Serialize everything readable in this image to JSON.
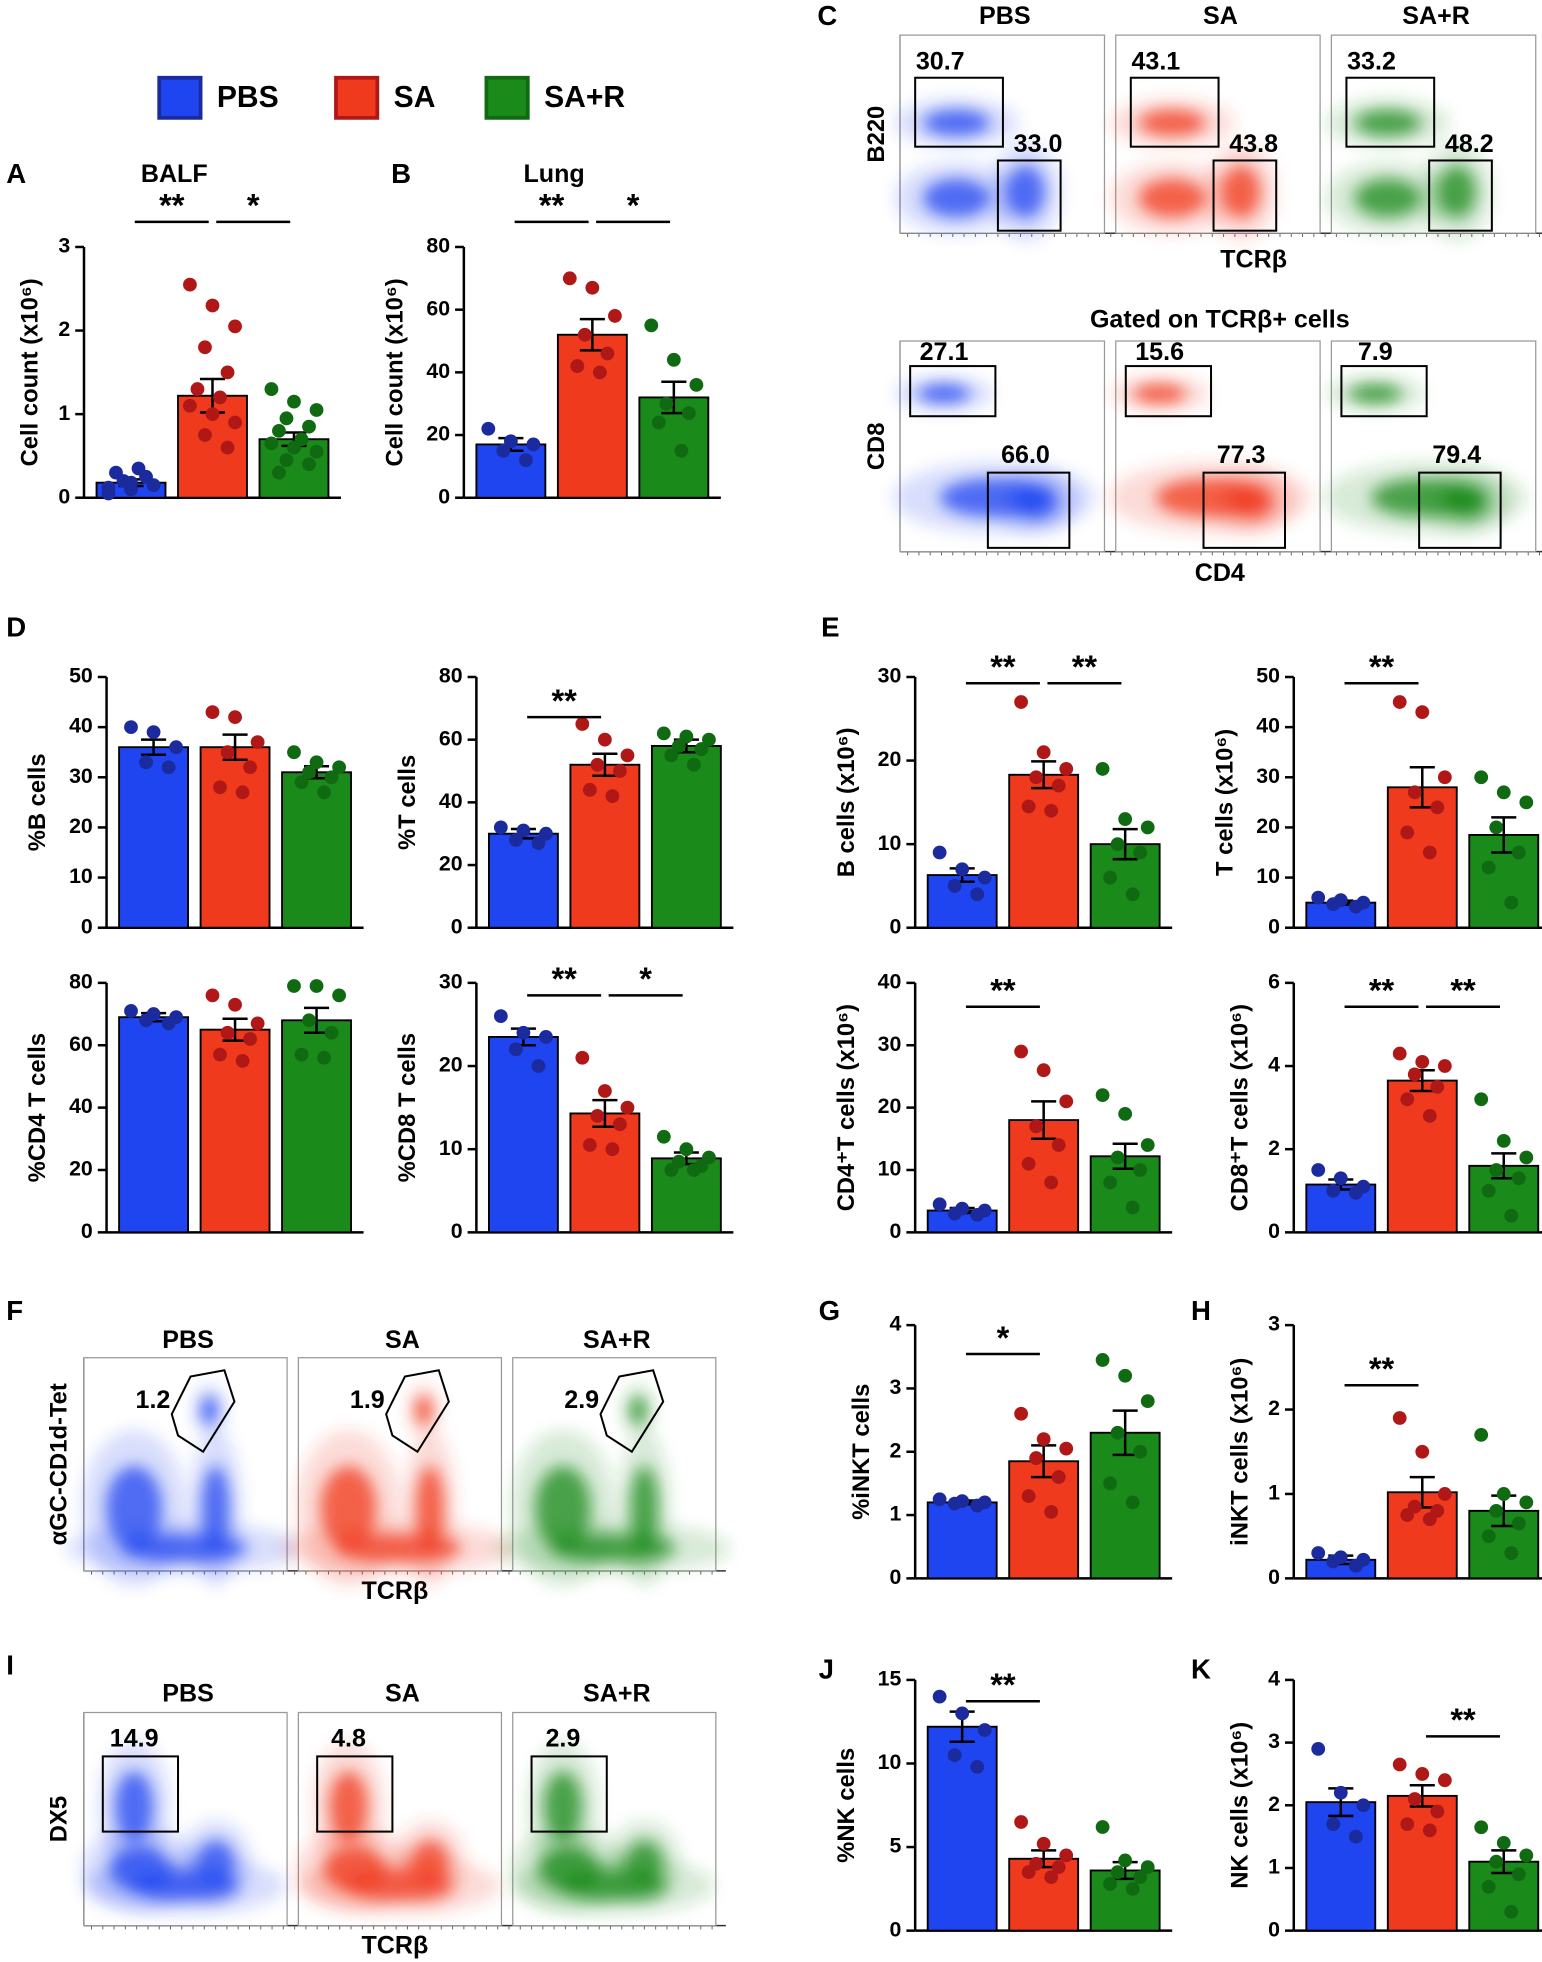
{
  "legend": [
    {
      "name": "PBS",
      "color": "#1f45f0",
      "point_color": "#1b2a9c"
    },
    {
      "name": "SA",
      "color": "#f03a1e",
      "point_color": "#b01818"
    },
    {
      "name": "SA+R",
      "color": "#1a8a1a",
      "point_color": "#0f6a12"
    }
  ],
  "chart_data": [
    {
      "type": "bar",
      "panel": "A",
      "title": "BALF",
      "ylabel": "Cell count (x10⁶)",
      "ylim": [
        0,
        3
      ],
      "yticks": [
        0,
        1,
        2,
        3
      ],
      "values": [
        0.18,
        1.22,
        0.7
      ],
      "errors": [
        0.04,
        0.2,
        0.08
      ],
      "points": [
        [
          0.05,
          0.1,
          0.15,
          0.2,
          0.25,
          0.3,
          0.35,
          0.12,
          0.18
        ],
        [
          2.55,
          2.3,
          2.05,
          1.8,
          1.5,
          1.3,
          1.2,
          1.1,
          1.0,
          0.9,
          0.75,
          0.6
        ],
        [
          1.3,
          1.15,
          1.05,
          0.95,
          0.85,
          0.8,
          0.7,
          0.65,
          0.6,
          0.55,
          0.45,
          0.4,
          0.3
        ]
      ],
      "significance": [
        {
          "groups": [
            0,
            1
          ],
          "label": "**"
        },
        {
          "groups": [
            1,
            2
          ],
          "label": "*"
        }
      ]
    },
    {
      "type": "bar",
      "panel": "B",
      "title": "Lung",
      "ylabel": "Cell count (x10⁶)",
      "ylim": [
        0,
        80
      ],
      "yticks": [
        0,
        20,
        40,
        60,
        80
      ],
      "values": [
        17,
        52,
        32
      ],
      "errors": [
        2,
        5,
        5
      ],
      "points": [
        [
          22,
          18,
          17,
          15,
          12
        ],
        [
          70,
          67,
          58,
          52,
          46,
          42,
          40
        ],
        [
          55,
          44,
          36,
          30,
          27,
          24,
          15
        ]
      ],
      "significance": [
        {
          "groups": [
            0,
            1
          ],
          "label": "**"
        },
        {
          "groups": [
            1,
            2
          ],
          "label": "*"
        }
      ]
    },
    {
      "type": "bar",
      "panel": "D",
      "ylabel": "%B cells",
      "ylim": [
        0,
        50
      ],
      "yticks": [
        0,
        10,
        20,
        30,
        40,
        50
      ],
      "values": [
        36,
        36,
        31
      ],
      "errors": [
        1.5,
        2.5,
        1.2
      ],
      "points": [
        [
          40,
          39,
          36,
          33,
          32
        ],
        [
          43,
          42,
          37,
          35,
          32,
          28,
          27
        ],
        [
          35,
          33,
          32,
          31,
          30,
          29,
          27
        ]
      ],
      "significance": []
    },
    {
      "type": "bar",
      "ylabel": "%T cells",
      "ylim": [
        0,
        80
      ],
      "yticks": [
        0,
        20,
        40,
        60,
        80
      ],
      "values": [
        30,
        52,
        58
      ],
      "errors": [
        1.5,
        3.5,
        2
      ],
      "points": [
        [
          32,
          31,
          30,
          28,
          27
        ],
        [
          65,
          60,
          55,
          52,
          50,
          44,
          42
        ],
        [
          62,
          61,
          60,
          58,
          57,
          55,
          52
        ]
      ],
      "significance": [
        {
          "groups": [
            0,
            1
          ],
          "label": "**"
        }
      ]
    },
    {
      "type": "bar",
      "ylabel": "%CD4 T cells",
      "ylim": [
        0,
        80
      ],
      "yticks": [
        0,
        20,
        40,
        60,
        80
      ],
      "values": [
        69,
        65,
        68
      ],
      "errors": [
        1.3,
        3.5,
        4
      ],
      "points": [
        [
          71,
          70,
          69,
          68,
          67
        ],
        [
          76,
          73,
          67,
          64,
          62,
          57,
          55
        ],
        [
          79,
          79,
          76,
          68,
          64,
          57,
          56
        ]
      ],
      "significance": []
    },
    {
      "type": "bar",
      "ylabel": "%CD8 T cells",
      "ylim": [
        0,
        30
      ],
      "yticks": [
        0,
        10,
        20,
        30
      ],
      "values": [
        23.5,
        14.3,
        8.9
      ],
      "errors": [
        1,
        1.6,
        0.7
      ],
      "points": [
        [
          26,
          24,
          23.5,
          22,
          20
        ],
        [
          21,
          17,
          15,
          14,
          13,
          10.5,
          10
        ],
        [
          11.5,
          10,
          9,
          8.5,
          8,
          7.5,
          7.5
        ]
      ],
      "significance": [
        {
          "groups": [
            0,
            1
          ],
          "label": "**"
        },
        {
          "groups": [
            1,
            2
          ],
          "label": "*"
        }
      ]
    },
    {
      "type": "bar",
      "panel": "E",
      "ylabel": "B cells (x10⁶)",
      "ylim": [
        0,
        30
      ],
      "yticks": [
        0,
        10,
        20,
        30
      ],
      "values": [
        6.3,
        18.3,
        10
      ],
      "errors": [
        0.8,
        1.6,
        1.8
      ],
      "points": [
        [
          9,
          7,
          6,
          5,
          4
        ],
        [
          27,
          21,
          19,
          18,
          17,
          14.5,
          14
        ],
        [
          19,
          13,
          12,
          10,
          9,
          6,
          4
        ]
      ],
      "significance": [
        {
          "groups": [
            0,
            1
          ],
          "label": "**"
        },
        {
          "groups": [
            1,
            2
          ],
          "label": "**"
        }
      ]
    },
    {
      "type": "bar",
      "ylabel": "T cells (x10⁶)",
      "ylim": [
        0,
        50
      ],
      "yticks": [
        0,
        10,
        20,
        30,
        40,
        50
      ],
      "values": [
        5,
        28,
        18.5
      ],
      "errors": [
        0.4,
        4,
        3.5
      ],
      "points": [
        [
          6,
          5.5,
          5,
          4.7,
          4.2
        ],
        [
          45,
          43,
          30,
          27,
          24,
          19,
          15
        ],
        [
          30,
          27,
          25,
          20,
          15,
          12,
          5
        ]
      ],
      "significance": [
        {
          "groups": [
            0,
            1
          ],
          "label": "**"
        }
      ]
    },
    {
      "type": "bar",
      "ylabel": "CD4⁺T cells (x10⁶)",
      "ylim": [
        0,
        40
      ],
      "yticks": [
        0,
        10,
        20,
        30,
        40
      ],
      "values": [
        3.5,
        18,
        12.2
      ],
      "errors": [
        0.4,
        3,
        2
      ],
      "points": [
        [
          4.5,
          3.8,
          3.5,
          3,
          2.8
        ],
        [
          29,
          26,
          21,
          17,
          14,
          11,
          8
        ],
        [
          22,
          19,
          14,
          12,
          10,
          8,
          4
        ]
      ],
      "significance": [
        {
          "groups": [
            0,
            1
          ],
          "label": "**"
        }
      ]
    },
    {
      "type": "bar",
      "ylabel": "CD8⁺T cells (x10⁶)",
      "ylim": [
        0,
        6
      ],
      "yticks": [
        0,
        2,
        4,
        6
      ],
      "values": [
        1.15,
        3.65,
        1.6
      ],
      "errors": [
        0.12,
        0.25,
        0.3
      ],
      "points": [
        [
          1.5,
          1.3,
          1.1,
          1,
          0.95
        ],
        [
          4.3,
          4.1,
          4,
          3.8,
          3.5,
          3.2,
          2.8
        ],
        [
          3.2,
          2.2,
          1.8,
          1.5,
          1.3,
          1,
          0.4
        ]
      ],
      "significance": [
        {
          "groups": [
            0,
            1
          ],
          "label": "**"
        },
        {
          "groups": [
            1,
            2
          ],
          "label": "**"
        }
      ]
    },
    {
      "type": "bar",
      "panel": "G",
      "ylabel": "%iNKT cells",
      "ylim": [
        0,
        4
      ],
      "yticks": [
        0,
        1,
        2,
        3,
        4
      ],
      "values": [
        1.2,
        1.85,
        2.3
      ],
      "errors": [
        0.03,
        0.25,
        0.35
      ],
      "points": [
        [
          1.25,
          1.22,
          1.2,
          1.18,
          1.15
        ],
        [
          2.6,
          2.2,
          2.05,
          1.9,
          1.6,
          1.3,
          1.05
        ],
        [
          3.45,
          3.2,
          2.8,
          2.3,
          2.0,
          1.5,
          1.2
        ]
      ],
      "significance": [
        {
          "groups": [
            0,
            1
          ],
          "label": "*"
        }
      ]
    },
    {
      "type": "bar",
      "panel": "H",
      "ylabel": "iNKT cells (x10⁶)",
      "ylim": [
        0,
        3
      ],
      "yticks": [
        0,
        1,
        2,
        3
      ],
      "values": [
        0.22,
        1.02,
        0.8
      ],
      "errors": [
        0.05,
        0.18,
        0.18
      ],
      "points": [
        [
          0.3,
          0.25,
          0.22,
          0.2,
          0.15
        ],
        [
          1.9,
          1.5,
          1.0,
          0.85,
          0.8,
          0.75,
          0.7
        ],
        [
          1.7,
          1.0,
          0.9,
          0.8,
          0.65,
          0.5,
          0.3
        ]
      ],
      "significance": [
        {
          "groups": [
            0,
            1
          ],
          "label": "**"
        }
      ]
    },
    {
      "type": "bar",
      "panel": "J",
      "ylabel": "%NK cells",
      "ylim": [
        0,
        15
      ],
      "yticks": [
        0,
        5,
        10,
        15
      ],
      "values": [
        12.2,
        4.3,
        3.6
      ],
      "errors": [
        0.9,
        0.5,
        0.5
      ],
      "points": [
        [
          14,
          13,
          12,
          10.5,
          9.8
        ],
        [
          6.5,
          5.2,
          4.5,
          4,
          3.8,
          3.5,
          3.2
        ],
        [
          6.2,
          4.2,
          3.8,
          3.5,
          3.2,
          2.8,
          2.5
        ]
      ],
      "significance": [
        {
          "groups": [
            0,
            1
          ],
          "label": "**"
        }
      ]
    },
    {
      "type": "bar",
      "panel": "K",
      "ylabel": "NK cells (x10⁶)",
      "ylim": [
        0,
        4
      ],
      "yticks": [
        0,
        1,
        2,
        3,
        4
      ],
      "values": [
        2.05,
        2.15,
        1.1
      ],
      "errors": [
        0.22,
        0.17,
        0.18
      ],
      "points": [
        [
          2.9,
          2.2,
          2.0,
          1.7,
          1.5
        ],
        [
          2.65,
          2.5,
          2.4,
          2.1,
          1.9,
          1.7,
          1.6
        ],
        [
          1.65,
          1.4,
          1.2,
          1.1,
          0.9,
          0.7,
          0.3
        ]
      ],
      "significance": [
        {
          "groups": [
            1,
            2
          ],
          "label": "**"
        }
      ]
    }
  ],
  "flow": [
    {
      "panel": "C",
      "groups": [
        "PBS",
        "SA",
        "SA+R"
      ],
      "rows": [
        {
          "ylabel": "B220",
          "xlabel": "TCRβ",
          "gates": [
            [
              "30.7",
              "33.0"
            ],
            [
              "43.1",
              "43.8"
            ],
            [
              "33.2",
              "48.2"
            ]
          ]
        },
        {
          "title": "Gated on TCRβ+ cells",
          "ylabel": "CD8",
          "xlabel": "CD4",
          "gates": [
            [
              "27.1",
              "66.0"
            ],
            [
              "15.6",
              "77.3"
            ],
            [
              "7.9",
              "79.4"
            ]
          ]
        }
      ]
    },
    {
      "panel": "F",
      "groups": [
        "PBS",
        "SA",
        "SA+R"
      ],
      "rows": [
        {
          "ylabel": "αGC-CD1d-Tet",
          "xlabel": "TCRβ",
          "gates": [
            [
              "1.2"
            ],
            [
              "1.9"
            ],
            [
              "2.9"
            ]
          ]
        }
      ]
    },
    {
      "panel": "I",
      "groups": [
        "PBS",
        "SA",
        "SA+R"
      ],
      "rows": [
        {
          "ylabel": "DX5",
          "xlabel": "TCRβ",
          "gates": [
            [
              "14.9"
            ],
            [
              "4.8"
            ],
            [
              "2.9"
            ]
          ]
        }
      ]
    }
  ]
}
